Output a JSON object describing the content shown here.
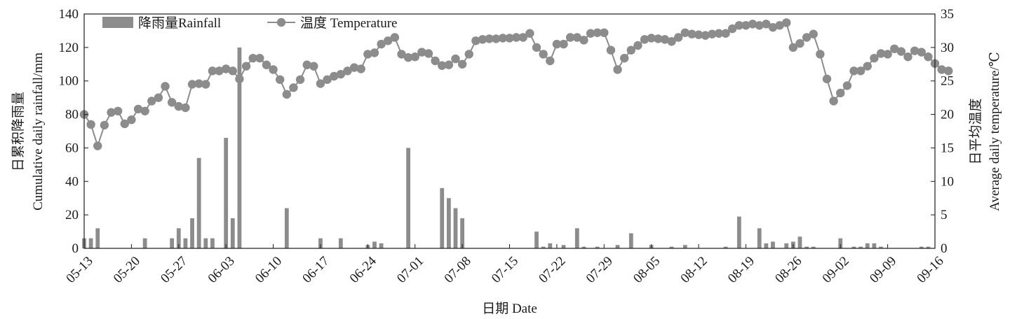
{
  "chart_data": {
    "type": "bar+line",
    "xlabel": "日期 Date",
    "ylabel_left_cn": "日累积降雨量",
    "ylabel_left_en": "Cumulative daily rainfall/mm",
    "ylabel_right_cn": "日平均温度",
    "ylabel_right_en": "Average daily temperature/℃",
    "ylim_left": [
      0,
      140
    ],
    "ylim_right": [
      0,
      35
    ],
    "yticks_left": [
      0,
      20,
      40,
      60,
      80,
      100,
      120,
      140
    ],
    "yticks_right": [
      0,
      5,
      10,
      15,
      20,
      25,
      30,
      35
    ],
    "x_start": "05-13",
    "x_end": "09-16",
    "x_tick_labels": [
      "05-13",
      "05-20",
      "05-27",
      "06-03",
      "06-10",
      "06-17",
      "06-24",
      "07-01",
      "07-08",
      "07-15",
      "07-22",
      "07-29",
      "08-05",
      "08-12",
      "08-19",
      "08-26",
      "09-02",
      "09-09",
      "09-16"
    ],
    "legend": {
      "position": "top-left",
      "rain_label": "降雨量Rainfall",
      "temp_label": "温度 Temperature"
    },
    "colors": {
      "bar": "#8c8c8c",
      "line": "#8c8c8c",
      "marker": "#8c8c8c",
      "axis": "#1a1a1a"
    },
    "series": [
      {
        "name": "降雨量Rainfall",
        "axis": "left",
        "kind": "bar",
        "dates": [
          "05-13",
          "05-14",
          "05-15",
          "05-22",
          "05-26",
          "05-27",
          "05-28",
          "05-29",
          "05-30",
          "05-31",
          "06-01",
          "06-03",
          "06-04",
          "06-05",
          "06-12",
          "06-17",
          "06-20",
          "06-24",
          "06-25",
          "06-26",
          "06-30",
          "07-05",
          "07-06",
          "07-07",
          "07-08",
          "07-19",
          "07-20",
          "07-21",
          "07-23",
          "07-25",
          "07-26",
          "07-28",
          "07-31",
          "08-02",
          "08-05",
          "08-08",
          "08-10",
          "08-16",
          "08-18",
          "08-21",
          "08-22",
          "08-23",
          "08-25",
          "08-26",
          "08-27",
          "08-28",
          "08-29",
          "09-02",
          "09-04",
          "09-05",
          "09-06",
          "09-07",
          "09-08",
          "09-14",
          "09-15"
        ],
        "values": [
          6,
          6,
          12,
          6,
          6,
          12,
          6,
          18,
          54,
          6,
          6,
          66,
          18,
          120,
          24,
          6,
          6,
          2,
          4,
          3,
          60,
          36,
          30,
          24,
          18,
          10,
          1,
          3,
          2,
          12,
          1,
          1,
          2,
          9,
          2,
          1,
          2,
          1,
          19,
          12,
          3,
          4,
          3,
          4,
          7,
          1,
          1,
          6,
          1,
          1,
          3,
          3,
          1,
          1,
          1
        ]
      },
      {
        "name": "温度 Temperature",
        "axis": "right",
        "kind": "line",
        "start": "05-13",
        "values": [
          20,
          18.5,
          15.3,
          18.4,
          20.3,
          20.5,
          18.6,
          19.2,
          20.8,
          20.5,
          22,
          22.5,
          24.2,
          21.8,
          21.2,
          21,
          24.5,
          24.6,
          24.5,
          26.5,
          26.5,
          26.8,
          26.5,
          25.3,
          27.2,
          28.4,
          28.4,
          27.4,
          26.7,
          25.2,
          23,
          24,
          25.2,
          27.4,
          27.2,
          24.6,
          25.2,
          25.7,
          26,
          26.5,
          27,
          26.8,
          29,
          29.2,
          30.5,
          31,
          31.5,
          29,
          28.5,
          28.6,
          29.3,
          29.1,
          28,
          27.3,
          27.4,
          28.3,
          27.5,
          29,
          31,
          31.2,
          31.3,
          31.3,
          31.4,
          31.4,
          31.5,
          31.5,
          32.1,
          30,
          29,
          28,
          30.5,
          30.5,
          31.5,
          31.5,
          31.1,
          32.1,
          32.2,
          32.2,
          29.6,
          26.7,
          28.4,
          29.6,
          30.3,
          31.2,
          31.4,
          31.3,
          31.2,
          30.9,
          31.5,
          32.2,
          32,
          31.9,
          31.8,
          32,
          32.1,
          32.1,
          32.8,
          33.3,
          33.3,
          33.5,
          33.3,
          33.5,
          33,
          33.3,
          33.7,
          30,
          30.6,
          31.5,
          32,
          29,
          25.3,
          22,
          23.2,
          24.3,
          26.5,
          26.5,
          27.2,
          28.4,
          29.1,
          29,
          29.8,
          29.4,
          28.6,
          29.5,
          29.3,
          28.6,
          27.6,
          26.7,
          26.5
        ]
      }
    ]
  }
}
